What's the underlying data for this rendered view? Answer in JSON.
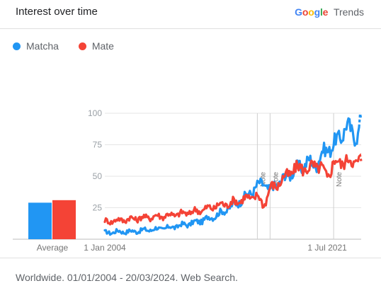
{
  "header": {
    "title": "Interest over time",
    "brand_word": "Google",
    "brand_product": "Trends"
  },
  "legend": [
    {
      "name": "Matcha",
      "color": "#2196f3"
    },
    {
      "name": "Mate",
      "color": "#f44336"
    }
  ],
  "footer": {
    "text": "Worldwide. 01/01/2004 - 20/03/2024. Web Search."
  },
  "chart_data": {
    "type": "line",
    "x_start": "2004-01",
    "x_end": "2024-03",
    "x_tick_labels": [
      "1 Jan 2004",
      "1 Jul 2021"
    ],
    "x_ticks": [
      "2004-01",
      "2021-07"
    ],
    "y_ticks": [
      25,
      50,
      75,
      100
    ],
    "ylim": [
      0,
      100
    ],
    "grid": true,
    "legend_position": "top-left",
    "average_label": "Average",
    "averages": [
      {
        "name": "Matcha",
        "value": 29
      },
      {
        "name": "Mate",
        "value": 31
      }
    ],
    "notes": [
      {
        "label": "Note",
        "x": "2016-01"
      },
      {
        "label": "Note",
        "x": "2017-01"
      },
      {
        "label": "Note",
        "x": "2022-01"
      }
    ],
    "partial_from": "2024-01",
    "series": [
      {
        "name": "Matcha",
        "color": "#2196f3",
        "points": [
          [
            "2004-01",
            5
          ],
          [
            "2005-01",
            6
          ],
          [
            "2006-01",
            6
          ],
          [
            "2007-01",
            7
          ],
          [
            "2008-01",
            8
          ],
          [
            "2009-01",
            9
          ],
          [
            "2010-01",
            11
          ],
          [
            "2011-01",
            13
          ],
          [
            "2012-01",
            16
          ],
          [
            "2013-01",
            20
          ],
          [
            "2014-01",
            26
          ],
          [
            "2015-01",
            33
          ],
          [
            "2016-01",
            42
          ],
          [
            "2016-07",
            45
          ],
          [
            "2017-01",
            38
          ],
          [
            "2017-07",
            44
          ],
          [
            "2018-01",
            47
          ],
          [
            "2018-07",
            52
          ],
          [
            "2019-01",
            55
          ],
          [
            "2019-07",
            58
          ],
          [
            "2020-01",
            62
          ],
          [
            "2020-07",
            58
          ],
          [
            "2021-01",
            66
          ],
          [
            "2021-07",
            72
          ],
          [
            "2022-01",
            74
          ],
          [
            "2022-07",
            82
          ],
          [
            "2023-01",
            89
          ],
          [
            "2023-07",
            85
          ],
          [
            "2023-12",
            82
          ],
          [
            "2024-03",
            95
          ]
        ]
      },
      {
        "name": "Mate",
        "color": "#f44336",
        "points": [
          [
            "2004-01",
            14
          ],
          [
            "2005-01",
            15
          ],
          [
            "2006-01",
            16
          ],
          [
            "2007-01",
            17
          ],
          [
            "2008-01",
            18
          ],
          [
            "2009-01",
            19
          ],
          [
            "2010-01",
            20
          ],
          [
            "2011-01",
            22
          ],
          [
            "2012-01",
            24
          ],
          [
            "2013-01",
            27
          ],
          [
            "2014-01",
            29
          ],
          [
            "2015-01",
            32
          ],
          [
            "2016-01",
            34
          ],
          [
            "2016-07",
            27
          ],
          [
            "2017-01",
            40
          ],
          [
            "2017-07",
            43
          ],
          [
            "2018-01",
            47
          ],
          [
            "2018-07",
            53
          ],
          [
            "2019-01",
            55
          ],
          [
            "2019-07",
            58
          ],
          [
            "2020-01",
            54
          ],
          [
            "2020-07",
            60
          ],
          [
            "2021-01",
            56
          ],
          [
            "2021-07",
            50
          ],
          [
            "2022-01",
            60
          ],
          [
            "2022-07",
            62
          ],
          [
            "2023-01",
            61
          ],
          [
            "2023-07",
            63
          ],
          [
            "2024-01",
            62
          ],
          [
            "2024-03",
            62
          ]
        ]
      }
    ]
  }
}
